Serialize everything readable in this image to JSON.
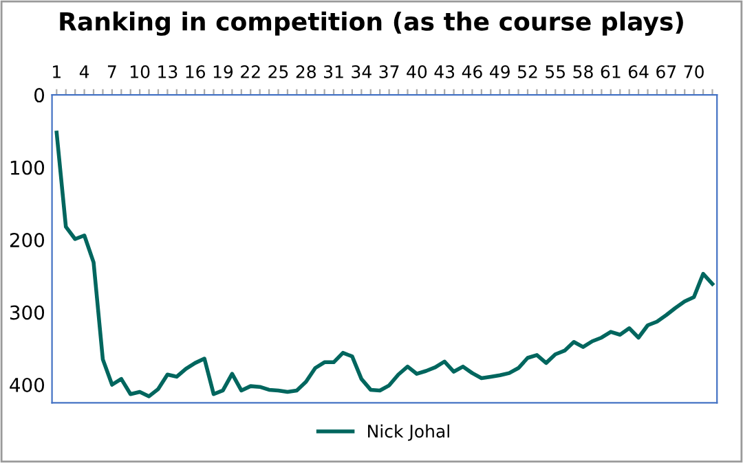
{
  "chart_data": {
    "type": "line",
    "title": "Ranking in competition (as the course plays)",
    "categories": [
      "1",
      null,
      null,
      "4",
      null,
      null,
      "7",
      null,
      null,
      "10",
      null,
      null,
      "13",
      null,
      null,
      "16",
      null,
      null,
      "19",
      null,
      null,
      "22",
      null,
      null,
      "25",
      null,
      null,
      "28",
      null,
      null,
      "31",
      null,
      null,
      "34",
      null,
      null,
      "37",
      null,
      null,
      "40",
      null,
      null,
      "43",
      null,
      null,
      "46",
      null,
      null,
      "49",
      null,
      null,
      "52",
      null,
      null,
      "55",
      null,
      null,
      "58",
      null,
      null,
      "61",
      null,
      null,
      "64",
      null,
      null,
      "67",
      null,
      null,
      "70",
      null,
      null
    ],
    "series": [
      {
        "name": "Nick Johal",
        "color": "#00665e",
        "values": [
          52,
          182,
          199,
          194,
          231,
          365,
          400,
          392,
          413,
          410,
          416,
          406,
          386,
          389,
          378,
          370,
          364,
          413,
          408,
          385,
          408,
          402,
          403,
          407,
          408,
          410,
          408,
          396,
          377,
          369,
          369,
          356,
          361,
          392,
          407,
          408,
          401,
          386,
          375,
          385,
          381,
          376,
          368,
          382,
          375,
          384,
          391,
          389,
          387,
          384,
          377,
          363,
          359,
          370,
          358,
          353,
          341,
          348,
          340,
          335,
          327,
          331,
          322,
          335,
          318,
          313,
          304,
          294,
          285,
          279,
          247,
          261
        ]
      }
    ],
    "ylim": [
      425,
      0
    ],
    "yticks": [
      0,
      100,
      200,
      300,
      400
    ],
    "grid": false,
    "legend": "bottom",
    "marker": "none",
    "line_style": "solid"
  }
}
